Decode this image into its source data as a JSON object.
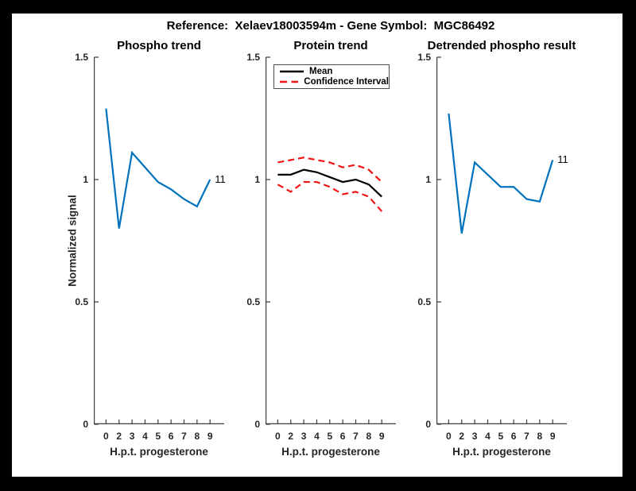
{
  "figure": {
    "title": "Reference:  Xelaev18003594m - Gene Symbol:  MGC86492"
  },
  "axis": {
    "xlabel": "H.p.t. progesterone",
    "ylabel": "Normalized signal",
    "xticklabels": [
      "0",
      "2",
      "3",
      "4",
      "5",
      "6",
      "7",
      "8",
      "9"
    ],
    "yticklabels": [
      "0",
      "0.5",
      "1",
      "1.5"
    ],
    "ytick_values": [
      0,
      0.5,
      1,
      1.5
    ],
    "ylim": [
      0,
      1.5
    ]
  },
  "colors": {
    "line_blue": "#0072BD",
    "ci_red": "#f01414",
    "mean_black": "#000000",
    "axis_gray": "#3d3d3d"
  },
  "chart_data": [
    {
      "type": "line",
      "title": "Phospho trend",
      "xlabel": "H.p.t. progesterone",
      "ylabel": "Normalized signal",
      "categories": [
        "0",
        "2",
        "3",
        "4",
        "5",
        "6",
        "7",
        "8",
        "9"
      ],
      "ylim": [
        0,
        1.5
      ],
      "end_label": "11",
      "series": [
        {
          "name": "phospho-signal",
          "color": "#0072BD",
          "dash": "solid",
          "values": [
            1.29,
            0.8,
            1.11,
            1.05,
            0.99,
            0.96,
            0.92,
            0.89,
            1.0
          ]
        }
      ]
    },
    {
      "type": "line",
      "title": "Protein trend",
      "xlabel": "H.p.t. progesterone",
      "categories": [
        "0",
        "2",
        "3",
        "4",
        "5",
        "6",
        "7",
        "8",
        "9"
      ],
      "ylim": [
        0,
        1.5
      ],
      "legend": {
        "position": "top-left",
        "items": [
          {
            "label": "Mean",
            "color": "#000000",
            "dash": "solid"
          },
          {
            "label": "Confidence Interval",
            "color": "#f01414",
            "dash": "dashed"
          }
        ]
      },
      "series": [
        {
          "name": "mean",
          "color": "#000000",
          "dash": "solid",
          "values": [
            1.02,
            1.02,
            1.04,
            1.03,
            1.01,
            0.99,
            1.0,
            0.98,
            0.93
          ]
        },
        {
          "name": "ci-upper",
          "color": "#f01414",
          "dash": "dashed",
          "values": [
            1.07,
            1.08,
            1.09,
            1.08,
            1.07,
            1.05,
            1.06,
            1.04,
            0.99
          ]
        },
        {
          "name": "ci-lower",
          "color": "#f01414",
          "dash": "dashed",
          "values": [
            0.98,
            0.95,
            0.99,
            0.99,
            0.97,
            0.94,
            0.95,
            0.93,
            0.87
          ]
        }
      ]
    },
    {
      "type": "line",
      "title": "Detrended phospho result",
      "xlabel": "H.p.t. progesterone",
      "categories": [
        "0",
        "2",
        "3",
        "4",
        "5",
        "6",
        "7",
        "8",
        "9"
      ],
      "ylim": [
        0,
        1.5
      ],
      "end_label": "11",
      "series": [
        {
          "name": "detrended-phospho",
          "color": "#0072BD",
          "dash": "solid",
          "values": [
            1.27,
            0.78,
            1.07,
            1.02,
            0.97,
            0.97,
            0.92,
            0.91,
            1.08
          ]
        }
      ]
    }
  ]
}
